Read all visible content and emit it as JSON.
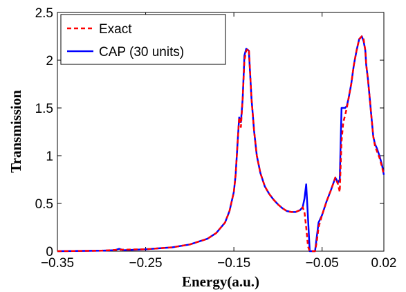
{
  "chart_data": {
    "type": "line",
    "title": "",
    "xlabel": "Energy(a.u.)",
    "ylabel": "Transmission",
    "xlim": [
      -0.35,
      0.02
    ],
    "ylim": [
      0,
      2.5
    ],
    "xticks": [
      -0.35,
      -0.25,
      -0.15,
      -0.05,
      0.02
    ],
    "xtick_labels": [
      "−0.35",
      "−0.25",
      "−0.15",
      "−0.05",
      "0.02"
    ],
    "yticks": [
      0,
      0.5,
      1,
      1.5,
      2,
      2.5
    ],
    "ytick_labels": [
      "0",
      "0.5",
      "1",
      "1.5",
      "2",
      "2.5"
    ],
    "grid": false,
    "legend_position": "top-left",
    "series": [
      {
        "name": "Exact",
        "color": "#ff0000",
        "style": "dashed",
        "x": [
          -0.35,
          -0.3,
          -0.28,
          -0.25,
          -0.22,
          -0.2,
          -0.18,
          -0.17,
          -0.16,
          -0.155,
          -0.15,
          -0.148,
          -0.146,
          -0.144,
          -0.142,
          -0.14,
          -0.138,
          -0.136,
          -0.133,
          -0.13,
          -0.127,
          -0.124,
          -0.12,
          -0.115,
          -0.11,
          -0.105,
          -0.1,
          -0.095,
          -0.09,
          -0.085,
          -0.08,
          -0.075,
          -0.072,
          -0.07,
          -0.068,
          -0.066,
          -0.064,
          -0.062,
          -0.06,
          -0.058,
          -0.056,
          -0.054,
          -0.05,
          -0.045,
          -0.04,
          -0.035,
          -0.032,
          -0.03,
          -0.028,
          -0.026,
          -0.024,
          -0.022,
          -0.02,
          -0.017,
          -0.014,
          -0.011,
          -0.008,
          -0.005,
          -0.003,
          -0.001,
          0.0,
          0.002,
          0.004,
          0.006,
          0.008,
          0.01,
          0.012,
          0.015,
          0.018,
          0.02
        ],
        "y": [
          0.0,
          0.005,
          0.015,
          0.02,
          0.04,
          0.07,
          0.13,
          0.19,
          0.3,
          0.42,
          0.62,
          0.8,
          1.1,
          1.4,
          1.3,
          1.6,
          2.0,
          2.1,
          2.12,
          1.6,
          1.25,
          1.0,
          0.82,
          0.68,
          0.6,
          0.54,
          0.49,
          0.45,
          0.42,
          0.41,
          0.41,
          0.43,
          0.46,
          0.41,
          0.25,
          0.05,
          0.0,
          0.0,
          0.0,
          0.0,
          0.1,
          0.25,
          0.38,
          0.52,
          0.64,
          0.77,
          0.7,
          0.62,
          1.15,
          1.35,
          1.42,
          1.5,
          1.6,
          1.75,
          1.95,
          2.1,
          2.22,
          2.25,
          2.22,
          2.1,
          1.95,
          1.8,
          1.6,
          1.4,
          1.2,
          1.1,
          1.05,
          0.98,
          0.88,
          0.8
        ]
      },
      {
        "name": "CAP (30 units)",
        "color": "#0000ff",
        "style": "solid",
        "x": [
          -0.35,
          -0.3,
          -0.285,
          -0.28,
          -0.275,
          -0.25,
          -0.22,
          -0.2,
          -0.18,
          -0.17,
          -0.16,
          -0.155,
          -0.15,
          -0.148,
          -0.146,
          -0.144,
          -0.142,
          -0.14,
          -0.138,
          -0.136,
          -0.133,
          -0.13,
          -0.127,
          -0.124,
          -0.12,
          -0.115,
          -0.11,
          -0.105,
          -0.1,
          -0.095,
          -0.09,
          -0.085,
          -0.08,
          -0.075,
          -0.072,
          -0.07,
          -0.068,
          -0.066,
          -0.064,
          -0.062,
          -0.06,
          -0.058,
          -0.056,
          -0.054,
          -0.05,
          -0.045,
          -0.04,
          -0.035,
          -0.032,
          -0.03,
          -0.028,
          -0.026,
          -0.024,
          -0.022,
          -0.02,
          -0.017,
          -0.014,
          -0.011,
          -0.008,
          -0.005,
          -0.003,
          -0.001,
          0.0,
          0.002,
          0.004,
          0.006,
          0.008,
          0.01,
          0.012,
          0.015,
          0.018,
          0.02
        ],
        "y": [
          0.0,
          0.005,
          0.01,
          0.025,
          0.01,
          0.02,
          0.04,
          0.07,
          0.13,
          0.19,
          0.3,
          0.42,
          0.62,
          0.8,
          1.1,
          1.4,
          1.35,
          1.6,
          2.05,
          2.12,
          2.1,
          1.6,
          1.25,
          1.0,
          0.82,
          0.68,
          0.6,
          0.54,
          0.49,
          0.45,
          0.42,
          0.41,
          0.41,
          0.43,
          0.46,
          0.55,
          0.7,
          0.35,
          0.0,
          0.0,
          0.0,
          0.0,
          0.15,
          0.3,
          0.38,
          0.52,
          0.64,
          0.77,
          0.72,
          0.75,
          1.5,
          1.5,
          1.5,
          1.52,
          1.6,
          1.75,
          1.95,
          2.1,
          2.22,
          2.25,
          2.2,
          2.1,
          1.95,
          1.8,
          1.6,
          1.4,
          1.2,
          1.12,
          1.08,
          1.0,
          0.9,
          0.8
        ]
      }
    ]
  }
}
